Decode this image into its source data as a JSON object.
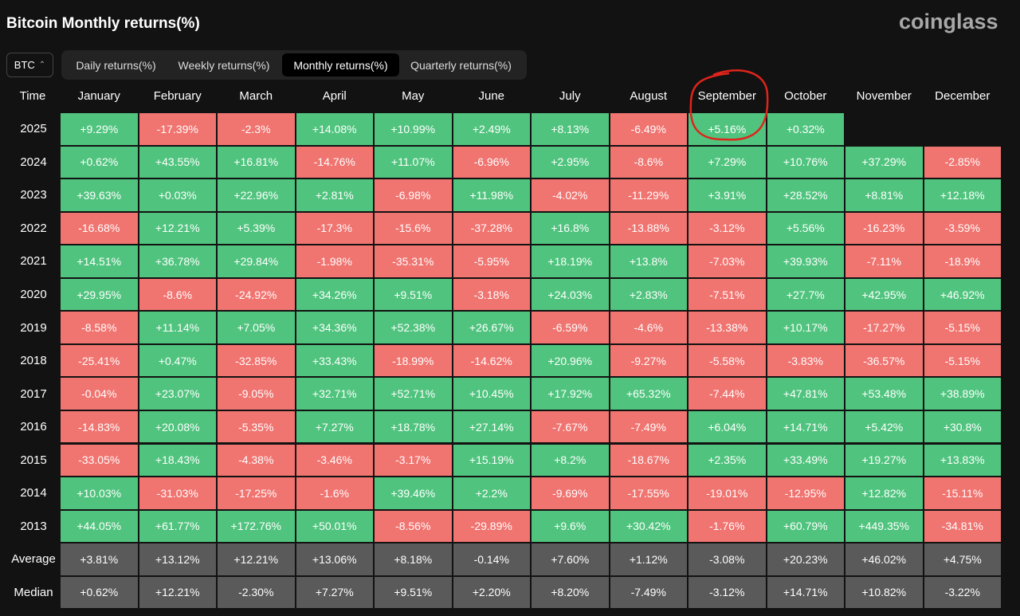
{
  "header": {
    "title": "Bitcoin Monthly returns(%)",
    "logo": "coinglass",
    "selector": "BTC",
    "tabs": [
      "Daily returns(%)",
      "Weekly returns(%)",
      "Monthly returns(%)",
      "Quarterly returns(%)"
    ],
    "active_tab": "Monthly returns(%)"
  },
  "table": {
    "columns": [
      "Time",
      "January",
      "February",
      "March",
      "April",
      "May",
      "June",
      "July",
      "August",
      "September",
      "October",
      "November",
      "December"
    ],
    "rows": [
      {
        "label": "2025",
        "cells": [
          "+9.29%",
          "-17.39%",
          "-2.3%",
          "+14.08%",
          "+10.99%",
          "+2.49%",
          "+8.13%",
          "-6.49%",
          "+5.16%",
          "+0.32%"
        ]
      },
      {
        "label": "2024",
        "cells": [
          "+0.62%",
          "+43.55%",
          "+16.81%",
          "-14.76%",
          "+11.07%",
          "-6.96%",
          "+2.95%",
          "-8.6%",
          "+7.29%",
          "+10.76%",
          "+37.29%",
          "-2.85%"
        ]
      },
      {
        "label": "2023",
        "cells": [
          "+39.63%",
          "+0.03%",
          "+22.96%",
          "+2.81%",
          "-6.98%",
          "+11.98%",
          "-4.02%",
          "-11.29%",
          "+3.91%",
          "+28.52%",
          "+8.81%",
          "+12.18%"
        ]
      },
      {
        "label": "2022",
        "cells": [
          "-16.68%",
          "+12.21%",
          "+5.39%",
          "-17.3%",
          "-15.6%",
          "-37.28%",
          "+16.8%",
          "-13.88%",
          "-3.12%",
          "+5.56%",
          "-16.23%",
          "-3.59%"
        ]
      },
      {
        "label": "2021",
        "cells": [
          "+14.51%",
          "+36.78%",
          "+29.84%",
          "-1.98%",
          "-35.31%",
          "-5.95%",
          "+18.19%",
          "+13.8%",
          "-7.03%",
          "+39.93%",
          "-7.11%",
          "-18.9%"
        ]
      },
      {
        "label": "2020",
        "cells": [
          "+29.95%",
          "-8.6%",
          "-24.92%",
          "+34.26%",
          "+9.51%",
          "-3.18%",
          "+24.03%",
          "+2.83%",
          "-7.51%",
          "+27.7%",
          "+42.95%",
          "+46.92%"
        ]
      },
      {
        "label": "2019",
        "cells": [
          "-8.58%",
          "+11.14%",
          "+7.05%",
          "+34.36%",
          "+52.38%",
          "+26.67%",
          "-6.59%",
          "-4.6%",
          "-13.38%",
          "+10.17%",
          "-17.27%",
          "-5.15%"
        ]
      },
      {
        "label": "2018",
        "cells": [
          "-25.41%",
          "+0.47%",
          "-32.85%",
          "+33.43%",
          "-18.99%",
          "-14.62%",
          "+20.96%",
          "-9.27%",
          "-5.58%",
          "-3.83%",
          "-36.57%",
          "-5.15%"
        ]
      },
      {
        "label": "2017",
        "cells": [
          "-0.04%",
          "+23.07%",
          "-9.05%",
          "+32.71%",
          "+52.71%",
          "+10.45%",
          "+17.92%",
          "+65.32%",
          "-7.44%",
          "+47.81%",
          "+53.48%",
          "+38.89%"
        ]
      },
      {
        "label": "2016",
        "cells": [
          "-14.83%",
          "+20.08%",
          "-5.35%",
          "+7.27%",
          "+18.78%",
          "+27.14%",
          "-7.67%",
          "-7.49%",
          "+6.04%",
          "+14.71%",
          "+5.42%",
          "+30.8%"
        ]
      },
      {
        "label": "2015",
        "cells": [
          "-33.05%",
          "+18.43%",
          "-4.38%",
          "-3.46%",
          "-3.17%",
          "+15.19%",
          "+8.2%",
          "-18.67%",
          "+2.35%",
          "+33.49%",
          "+19.27%",
          "+13.83%"
        ]
      },
      {
        "label": "2014",
        "cells": [
          "+10.03%",
          "-31.03%",
          "-17.25%",
          "-1.6%",
          "+39.46%",
          "+2.2%",
          "-9.69%",
          "-17.55%",
          "-19.01%",
          "-12.95%",
          "+12.82%",
          "-15.11%"
        ]
      },
      {
        "label": "2013",
        "cells": [
          "+44.05%",
          "+61.77%",
          "+172.76%",
          "+50.01%",
          "-8.56%",
          "-29.89%",
          "+9.6%",
          "+30.42%",
          "-1.76%",
          "+60.79%",
          "+449.35%",
          "-34.81%"
        ]
      },
      {
        "label": "Average",
        "cells": [
          "+3.81%",
          "+13.12%",
          "+12.21%",
          "+13.06%",
          "+8.18%",
          "-0.14%",
          "+7.60%",
          "+1.12%",
          "-3.08%",
          "+20.23%",
          "+46.02%",
          "+4.75%"
        ]
      },
      {
        "label": "Median",
        "cells": [
          "+0.62%",
          "+12.21%",
          "-2.30%",
          "+7.27%",
          "+9.51%",
          "+2.20%",
          "+8.20%",
          "-7.49%",
          "-3.12%",
          "+14.71%",
          "+10.82%",
          "-3.22%"
        ]
      }
    ]
  }
}
